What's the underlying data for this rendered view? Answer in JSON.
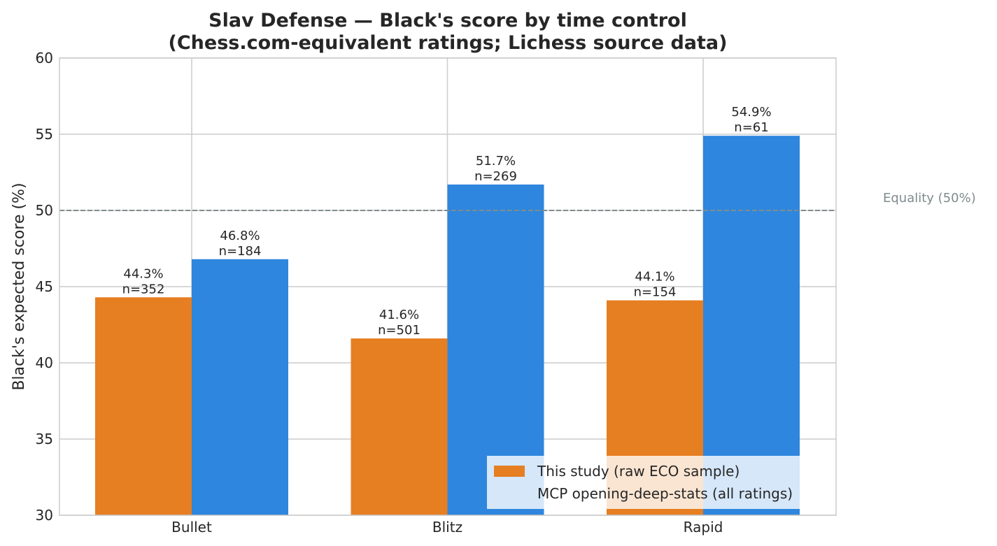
{
  "chart_data": {
    "type": "bar",
    "title_line1": "Slav Defense — Black's score by time control",
    "title_line2": "(Chess.com-equivalent ratings; Lichess source data)",
    "xlabel": "",
    "ylabel": "Black's expected score (%)",
    "ylim": [
      30,
      60
    ],
    "yticks": [
      "30",
      "35",
      "40",
      "45",
      "50",
      "55",
      "60"
    ],
    "ytick_values": [
      30,
      35,
      40,
      45,
      50,
      55,
      60
    ],
    "grid": true,
    "legend_position": "lower-right",
    "categories": [
      "Bullet",
      "Blitz",
      "Rapid"
    ],
    "series": [
      {
        "name": "This study (raw ECO sample)",
        "color": "#e67e22",
        "values": [
          44.3,
          41.6,
          44.1
        ],
        "value_labels": [
          "44.3%",
          "41.6%",
          "44.1%"
        ],
        "n_labels": [
          "n=352",
          "n=501",
          "n=154"
        ]
      },
      {
        "name": "MCP opening-deep-stats (all ratings)",
        "color": "#2e86de",
        "values": [
          46.8,
          51.7,
          54.9
        ],
        "value_labels": [
          "46.8%",
          "51.7%",
          "54.9%"
        ],
        "n_labels": [
          "n=184",
          "n=269",
          "n=61"
        ]
      }
    ],
    "reference_line": {
      "value": 50,
      "label": "Equality (50%)",
      "color": "#7f8c8d",
      "style": "dashed"
    }
  }
}
